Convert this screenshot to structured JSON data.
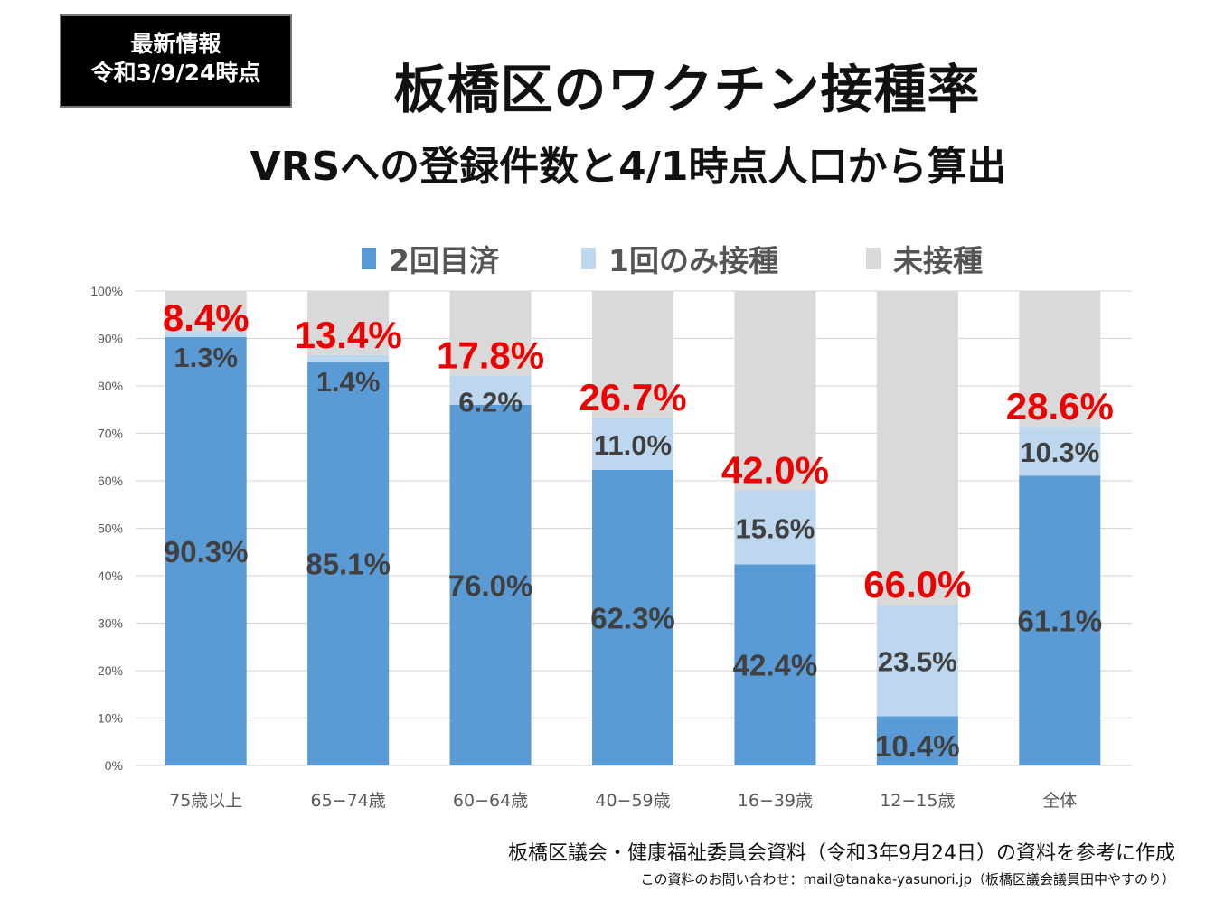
{
  "badge": {
    "line1": "最新情報",
    "line2": "令和3/9/24時点"
  },
  "header": {
    "title": "板橋区のワクチン接種率",
    "subtitle": "VRSへの登録件数と4/1時点人口から算出"
  },
  "footer": {
    "source": "板橋区議会・健康福祉委員会資料（令和3年9月24日）の資料を参考に作成",
    "contact": "この資料のお問い合わせ：mail@tanaka-yasunori.jp（板橋区議会議員田中やすのり）"
  },
  "chart_data": {
    "type": "bar",
    "stacked": true,
    "percent_stacked": true,
    "title": "板橋区のワクチン接種率",
    "xlabel": "",
    "ylabel": "",
    "ylim": [
      0,
      100
    ],
    "yticks": [
      "0%",
      "10%",
      "20%",
      "30%",
      "40%",
      "50%",
      "60%",
      "70%",
      "80%",
      "90%",
      "100%"
    ],
    "grid": true,
    "legend_position": "top",
    "categories": [
      "75歳以上",
      "65−74歳",
      "60−64歳",
      "40−59歳",
      "16−39歳",
      "12−15歳",
      "全体"
    ],
    "series": [
      {
        "name": "2回目済",
        "color": "#5b9bd5",
        "values": [
          90.3,
          85.1,
          76.0,
          62.3,
          42.4,
          10.4,
          61.1
        ],
        "labels": [
          "90.3%",
          "85.1%",
          "76.0%",
          "62.3%",
          "42.4%",
          "10.4%",
          "61.1%"
        ]
      },
      {
        "name": "1回のみ接種",
        "color": "#bdd7ee",
        "values": [
          1.3,
          1.4,
          6.2,
          11.0,
          15.6,
          23.5,
          10.3
        ],
        "labels": [
          "1.3%",
          "1.4%",
          "6.2%",
          "11.0%",
          "15.6%",
          "23.5%",
          "10.3%"
        ]
      },
      {
        "name": "未接種",
        "color": "#d9d9d9",
        "values": [
          8.4,
          13.4,
          17.8,
          26.7,
          42.0,
          66.0,
          28.6
        ],
        "labels": [
          "8.4%",
          "13.4%",
          "17.8%",
          "26.7%",
          "42.0%",
          "66.0%",
          "28.6%"
        ]
      }
    ],
    "annotation_color": "#ee0000"
  }
}
